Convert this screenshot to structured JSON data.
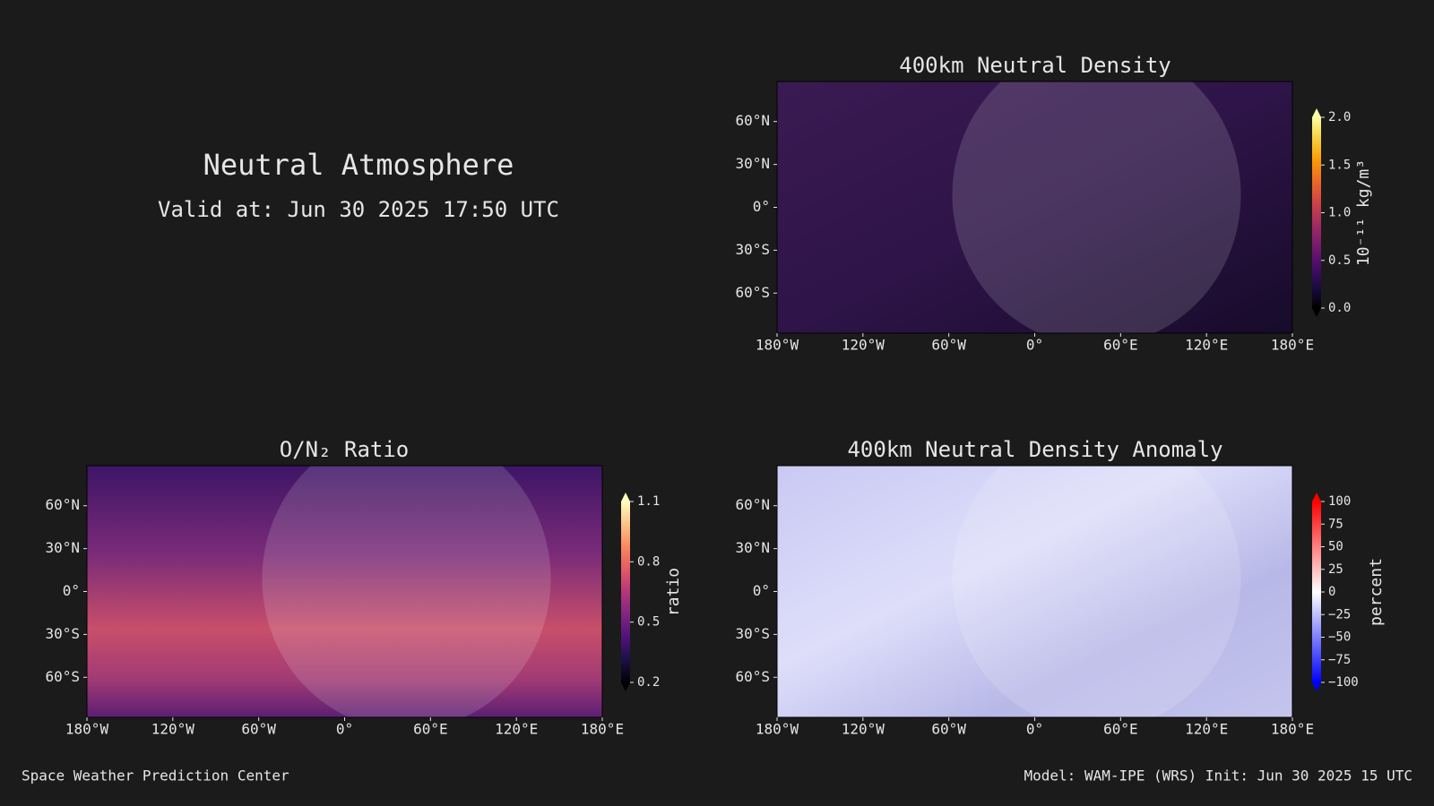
{
  "header": {
    "title": "Neutral Atmosphere",
    "valid": "Valid at: Jun 30 2025 17:50 UTC"
  },
  "panels": [
    {
      "title": "400km Neutral Density",
      "lonlim": [
        -180,
        180
      ],
      "latlim": [
        -88,
        88
      ],
      "lonticks": [
        {
          "value": -180,
          "label": "180°W"
        },
        {
          "value": -120,
          "label": "120°W"
        },
        {
          "value": -60,
          "label": "60°W"
        },
        {
          "value": 0,
          "label": "0°"
        },
        {
          "value": 60,
          "label": "60°E"
        },
        {
          "value": 120,
          "label": "120°E"
        },
        {
          "value": 180,
          "label": "180°E"
        }
      ],
      "latticks": [
        {
          "value": 60,
          "label": "60°N"
        },
        {
          "value": 30,
          "label": "30°N"
        },
        {
          "value": 0,
          "label": "0°"
        },
        {
          "value": -30,
          "label": "30°S"
        },
        {
          "value": -60,
          "label": "60°S"
        }
      ],
      "colorbar": {
        "label": "10⁻¹¹ kg/m³",
        "range": [
          0,
          2
        ],
        "ticks": [
          {
            "value": 0,
            "label": "0.0"
          },
          {
            "value": 0.5,
            "label": "0.5"
          },
          {
            "value": 1,
            "label": "1.0"
          },
          {
            "value": 1.5,
            "label": "1.5"
          },
          {
            "value": 2,
            "label": "2.0"
          }
        ],
        "colors": [
          "#000000",
          "#1b0c41",
          "#4a0c6b",
          "#781c6d",
          "#a52c60",
          "#cf4446",
          "#ed6925",
          "#fb9b06",
          "#f7d13d",
          "#fcffa4"
        ]
      }
    },
    {
      "title": "O/N₂ Ratio",
      "lonlim": [
        -180,
        180
      ],
      "latlim": [
        -88,
        88
      ],
      "lonticks": [
        {
          "value": -180,
          "label": "180°W"
        },
        {
          "value": -120,
          "label": "120°W"
        },
        {
          "value": -60,
          "label": "60°W"
        },
        {
          "value": 0,
          "label": "0°"
        },
        {
          "value": 60,
          "label": "60°E"
        },
        {
          "value": 120,
          "label": "120°E"
        },
        {
          "value": 180,
          "label": "180°E"
        }
      ],
      "latticks": [
        {
          "value": 60,
          "label": "60°N"
        },
        {
          "value": 30,
          "label": "30°N"
        },
        {
          "value": 0,
          "label": "0°"
        },
        {
          "value": -30,
          "label": "30°S"
        },
        {
          "value": -60,
          "label": "60°S"
        }
      ],
      "colorbar": {
        "label": "ratio",
        "range": [
          0.2,
          1.1
        ],
        "ticks": [
          {
            "value": 0.2,
            "label": "0.2"
          },
          {
            "value": 0.5,
            "label": "0.5"
          },
          {
            "value": 0.8,
            "label": "0.8"
          },
          {
            "value": 1.1,
            "label": "1.1"
          }
        ],
        "colors": [
          "#000004",
          "#1c1044",
          "#4f127b",
          "#812581",
          "#b5367a",
          "#e55964",
          "#fb8761",
          "#fec287",
          "#fcfdbf"
        ]
      }
    },
    {
      "title": "400km Neutral Density Anomaly",
      "lonlim": [
        -180,
        180
      ],
      "latlim": [
        -88,
        88
      ],
      "lonticks": [
        {
          "value": -180,
          "label": "180°W"
        },
        {
          "value": -120,
          "label": "120°W"
        },
        {
          "value": -60,
          "label": "60°W"
        },
        {
          "value": 0,
          "label": "0°"
        },
        {
          "value": 60,
          "label": "60°E"
        },
        {
          "value": 120,
          "label": "120°E"
        },
        {
          "value": 180,
          "label": "180°E"
        }
      ],
      "latticks": [
        {
          "value": 60,
          "label": "60°N"
        },
        {
          "value": 30,
          "label": "30°N"
        },
        {
          "value": 0,
          "label": "0°"
        },
        {
          "value": -30,
          "label": "30°S"
        },
        {
          "value": -60,
          "label": "60°S"
        }
      ],
      "colorbar": {
        "label": "percent",
        "range": [
          -100,
          100
        ],
        "ticks": [
          100,
          75,
          50,
          25,
          0,
          {
            "value": -25,
            "label": "−25"
          },
          {
            "value": -50,
            "label": "−50"
          },
          {
            "value": -75,
            "label": "−75"
          },
          {
            "value": -100,
            "label": "−100"
          }
        ],
        "colors": [
          "#0000ff",
          "#5555ff",
          "#aaaaff",
          "#ffffff",
          "#ffaaaa",
          "#ff5555",
          "#ff0000"
        ]
      }
    }
  ],
  "footer": {
    "left": "Space Weather Prediction Center",
    "right": "Model: WAM-IPE (WRS) Init: Jun 30 2025 15 UTC"
  }
}
